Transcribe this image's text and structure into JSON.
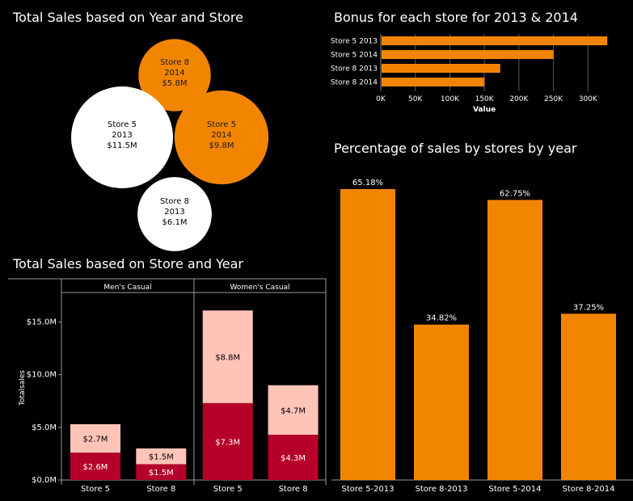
{
  "titles": {
    "bubble": "Total Sales based on Year and Store",
    "bonus": "Bonus for each store for 2013 & 2014",
    "stacked": "Total Sales based on Store and Year",
    "percent": "Percentage of sales by stores by year"
  },
  "colors": {
    "background": "#000000",
    "orange": "#f28500",
    "white": "#ffffff",
    "dark_red": "#b5002a",
    "light_pink": "#ffc4b8"
  },
  "chart_data": [
    {
      "type": "bubble",
      "title": "Total Sales based on Year and Store",
      "bubbles": [
        {
          "store": "Store 8",
          "year": "2014",
          "label": "$5.8M",
          "value": 5.8,
          "color": "orange"
        },
        {
          "store": "Store 5",
          "year": "2013",
          "label": "$11.5M",
          "value": 11.5,
          "color": "white"
        },
        {
          "store": "Store 5",
          "year": "2014",
          "label": "$9.8M",
          "value": 9.8,
          "color": "orange"
        },
        {
          "store": "Store 8",
          "year": "2013",
          "label": "$6.1M",
          "value": 6.1,
          "color": "white"
        }
      ]
    },
    {
      "type": "bar",
      "orientation": "horizontal",
      "title": "Bonus for each store for 2013 & 2014",
      "categories": [
        "Store 5 2013",
        "Store 5 2014",
        "Store 8 2013",
        "Store 8 2014"
      ],
      "values": [
        328000,
        250000,
        173000,
        150000
      ],
      "xlabel": "Value",
      "xlim": [
        0,
        350000
      ],
      "ticks": [
        0,
        50000,
        100000,
        150000,
        200000,
        250000,
        300000
      ],
      "tick_labels": [
        "0K",
        "50K",
        "100K",
        "150K",
        "200K",
        "250K",
        "300K"
      ],
      "grid": true
    },
    {
      "type": "bar",
      "stacked": true,
      "title": "Total Sales based on Store and Year",
      "ylabel": "Totalsales",
      "ylim": [
        0,
        17.5
      ],
      "ticks": [
        0,
        5,
        10,
        15
      ],
      "tick_labels": [
        "$0.0M",
        "$5.0M",
        "$10.0M",
        "$15.0M"
      ],
      "panels": [
        {
          "name": "Men's Casual",
          "categories": [
            "Store 5",
            "Store 8"
          ],
          "series": [
            {
              "name": "bottom",
              "color": "dark_red",
              "values": [
                2.6,
                1.5
              ],
              "labels": [
                "$2.6M",
                "$1.5M"
              ]
            },
            {
              "name": "top",
              "color": "light_pink",
              "values": [
                2.7,
                1.5
              ],
              "labels": [
                "$2.7M",
                "$1.5M"
              ]
            }
          ]
        },
        {
          "name": "Women's Casual",
          "categories": [
            "Store 5",
            "Store 8"
          ],
          "series": [
            {
              "name": "bottom",
              "color": "dark_red",
              "values": [
                7.3,
                4.3
              ],
              "labels": [
                "$7.3M",
                "$4.3M"
              ]
            },
            {
              "name": "top",
              "color": "light_pink",
              "values": [
                8.8,
                4.7
              ],
              "labels": [
                "$8.8M",
                "$4.7M"
              ]
            }
          ]
        }
      ]
    },
    {
      "type": "bar",
      "title": "Percentage of sales by stores by year",
      "categories": [
        "Store 5-2013",
        "Store 8-2013",
        "Store 5-2014",
        "Store 8-2014"
      ],
      "values": [
        65.18,
        34.82,
        62.75,
        37.25
      ],
      "labels": [
        "65.18%",
        "34.82%",
        "62.75%",
        "37.25%"
      ],
      "ylim": [
        0,
        65.18
      ]
    }
  ]
}
